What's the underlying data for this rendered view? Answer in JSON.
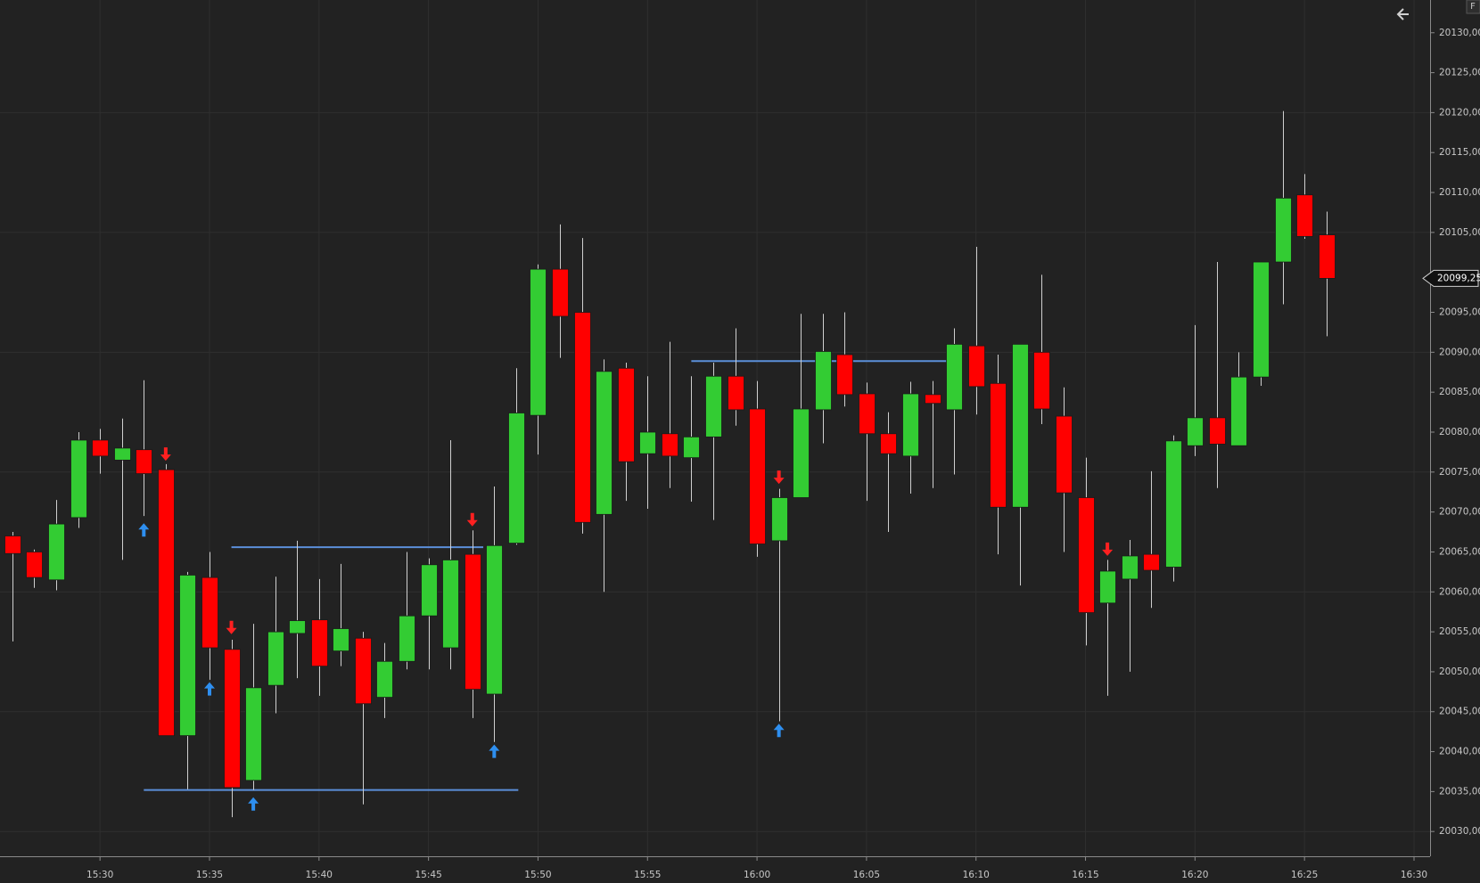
{
  "chart_data": {
    "type": "candlestick",
    "corner_label": "F",
    "x": [
      "15:26",
      "15:27",
      "15:28",
      "15:29",
      "15:30",
      "15:31",
      "15:32",
      "15:33",
      "15:34",
      "15:35",
      "15:36",
      "15:37",
      "15:38",
      "15:39",
      "15:40",
      "15:41",
      "15:42",
      "15:43",
      "15:44",
      "15:45",
      "15:46",
      "15:47",
      "15:48",
      "15:49",
      "15:50",
      "15:51",
      "15:52",
      "15:53",
      "15:54",
      "15:55",
      "15:56",
      "15:57",
      "15:58",
      "15:59",
      "16:00",
      "16:01",
      "16:02",
      "16:03",
      "16:04",
      "16:05",
      "16:06",
      "16:07",
      "16:08",
      "16:09",
      "16:10",
      "16:11",
      "16:12",
      "16:13",
      "16:14",
      "16:15",
      "16:16",
      "16:17",
      "16:18",
      "16:19",
      "16:20",
      "16:21",
      "16:22",
      "16:23",
      "16:24",
      "16:25",
      "16:26"
    ],
    "open": [
      20067,
      20065,
      20061.5,
      20069.3,
      20079,
      20076.5,
      20077.8,
      20075.3,
      20042,
      20061.8,
      20052.8,
      20036.4,
      20048.3,
      20054.8,
      20056.5,
      20052.6,
      20054.2,
      20046.8,
      20051.3,
      20057,
      20053,
      20064.7,
      20047.2,
      20066.1,
      20082.1,
      20100.4,
      20095,
      20069.7,
      20088,
      20077.3,
      20079.8,
      20076.8,
      20079.4,
      20087,
      20082.9,
      20066.4,
      20071.8,
      20082.8,
      20089.7,
      20084.8,
      20079.8,
      20077,
      20084.7,
      20082.8,
      20090.8,
      20086.1,
      20070.6,
      20090,
      20082,
      20071.8,
      20058.6,
      20061.6,
      20064.7,
      20063.1,
      20078.3,
      20081.8,
      20078.3,
      20086.9,
      20101.3,
      20109.7,
      20104.7
    ],
    "high": [
      20067.5,
      20065.3,
      20071.5,
      20080,
      20080.4,
      20081.7,
      20086.5,
      20076,
      20062.5,
      20065,
      20054,
      20056,
      20061.9,
      20066.4,
      20061.6,
      20063.5,
      20055,
      20053.6,
      20065,
      20064.2,
      20079,
      20067.7,
      20073.2,
      20088,
      20101,
      20106,
      20104.3,
      20089.1,
      20088.7,
      20087,
      20091.3,
      20087,
      20088.7,
      20093,
      20086.4,
      20072.9,
      20094.8,
      20094.8,
      20095,
      20086.2,
      20082.5,
      20086.3,
      20086.4,
      20093,
      20103.2,
      20089.7,
      20091,
      20099.7,
      20085.6,
      20076.8,
      20064,
      20066.5,
      20075.1,
      20079.6,
      20093.4,
      20101.3,
      20090,
      20101.3,
      20120.2,
      20112.3,
      20107.6
    ],
    "low": [
      20053.8,
      20060.5,
      20060.2,
      20068,
      20074.8,
      20064,
      20069.5,
      20042,
      20035.3,
      20049,
      20031.8,
      20035.2,
      20044.8,
      20049.2,
      20047,
      20050.7,
      20033.4,
      20044.2,
      20050.3,
      20050.3,
      20050.3,
      20044.2,
      20041.2,
      20065.9,
      20077.2,
      20089.3,
      20067.3,
      20060,
      20071.4,
      20070.4,
      20073,
      20071.3,
      20069,
      20080.8,
      20064.4,
      20043.8,
      20071.8,
      20078.6,
      20083.2,
      20071.4,
      20067.5,
      20072.3,
      20073,
      20074.7,
      20082.2,
      20064.7,
      20060.8,
      20081,
      20065,
      20053.3,
      20047,
      20050,
      20058,
      20061.3,
      20077,
      20073,
      20078.3,
      20085.8,
      20096,
      20104.2,
      20092
    ],
    "close": [
      20064.8,
      20061.8,
      20068.5,
      20079,
      20077,
      20078,
      20074.8,
      20042,
      20062.1,
      20053,
      20035.5,
      20048,
      20055,
      20056.4,
      20050.7,
      20055.4,
      20046,
      20051.3,
      20057,
      20063.4,
      20064,
      20047.8,
      20065.8,
      20082.4,
      20100.4,
      20094.5,
      20068.7,
      20087.6,
      20076.3,
      20080,
      20077,
      20079.4,
      20087,
      20082.8,
      20066,
      20071.8,
      20082.9,
      20090.1,
      20084.7,
      20079.8,
      20077.3,
      20084.8,
      20083.6,
      20091,
      20085.7,
      20070.6,
      20091,
      20082.9,
      20072.4,
      20057.4,
      20062.6,
      20064.5,
      20062.7,
      20078.9,
      20081.8,
      20078.5,
      20086.9,
      20101.3,
      20109.3,
      20104.5,
      20099.25
    ],
    "up_color": "#33cc33",
    "down_color": "#ff0000",
    "wick_color": "#cfcfcf",
    "background": "#222222",
    "grid": true,
    "xlim": [
      "15:25:26",
      "16:30:44"
    ],
    "ylim": [
      20026.9,
      20134.1
    ],
    "xticks": [
      "15:30",
      "15:35",
      "15:40",
      "15:45",
      "15:50",
      "15:55",
      "16:00",
      "16:05",
      "16:10",
      "16:15",
      "16:20",
      "16:25",
      "16:30"
    ],
    "ygrid": [
      20030,
      20045,
      20060,
      20075,
      20090,
      20105,
      20120
    ],
    "yticks": [
      {
        "value": 20030,
        "label": "20030,00"
      },
      {
        "value": 20035,
        "label": "20035,00"
      },
      {
        "value": 20040,
        "label": "20040,00"
      },
      {
        "value": 20045,
        "label": "20045,00"
      },
      {
        "value": 20050,
        "label": "20050,00"
      },
      {
        "value": 20055,
        "label": "20055,00"
      },
      {
        "value": 20060,
        "label": "20060,00"
      },
      {
        "value": 20065,
        "label": "20065,00"
      },
      {
        "value": 20070,
        "label": "20070,00"
      },
      {
        "value": 20075,
        "label": "20075,00"
      },
      {
        "value": 20080,
        "label": "20080,00"
      },
      {
        "value": 20085,
        "label": "20085,00"
      },
      {
        "value": 20090,
        "label": "20090,00"
      },
      {
        "value": 20095,
        "label": "20095,00"
      },
      {
        "value": 20105,
        "label": "20105,00"
      },
      {
        "value": 20110,
        "label": "20110,00"
      },
      {
        "value": 20115,
        "label": "20115,00"
      },
      {
        "value": 20120,
        "label": "20120,00"
      },
      {
        "value": 20125,
        "label": "20125,00"
      },
      {
        "value": 20130,
        "label": "20130,00"
      }
    ],
    "last_price": {
      "value": 20099.25,
      "label": "20099,25"
    },
    "levels": [
      {
        "x": [
          "15:36",
          "15:47:30"
        ],
        "y": 20065.6,
        "color": "#5b8fd9"
      },
      {
        "x": [
          "15:32",
          "15:49:06"
        ],
        "y": 20035.2,
        "color": "#5b8fd9"
      },
      {
        "x": [
          "15:57",
          "16:08:40"
        ],
        "y": 20088.9,
        "color": "#5b8fd9"
      }
    ],
    "signals": [
      {
        "x": "15:32",
        "y": 20067.7,
        "direction": "up",
        "color": "#2e8ff0"
      },
      {
        "x": "15:35",
        "y": 20047.8,
        "direction": "up",
        "color": "#2e8ff0"
      },
      {
        "x": "15:37",
        "y": 20033.4,
        "direction": "up",
        "color": "#2e8ff0"
      },
      {
        "x": "15:48",
        "y": 20040,
        "direction": "up",
        "color": "#2e8ff0"
      },
      {
        "x": "16:01",
        "y": 20042.6,
        "direction": "up",
        "color": "#2e8ff0"
      },
      {
        "x": "15:33",
        "y": 20077.3,
        "direction": "down",
        "color": "#ff2020"
      },
      {
        "x": "15:36",
        "y": 20055.6,
        "direction": "down",
        "color": "#ff2020"
      },
      {
        "x": "15:47",
        "y": 20069.1,
        "direction": "down",
        "color": "#ff2020"
      },
      {
        "x": "16:01",
        "y": 20074.4,
        "direction": "down",
        "color": "#ff2020"
      },
      {
        "x": "16:16",
        "y": 20065.4,
        "direction": "down",
        "color": "#ff2020"
      }
    ]
  }
}
